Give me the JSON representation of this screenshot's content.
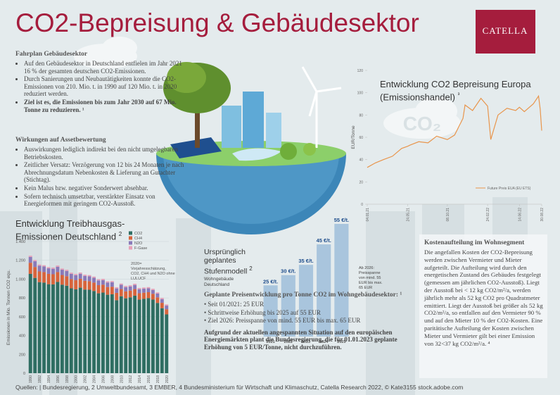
{
  "title": "CO2-Bepreisung & Gebäudesektor",
  "logo": "CATELLA",
  "fahrplan": {
    "heading": "Fahrplan Gebäudesektor",
    "items": [
      "Auf den Gebäudesektor in Deutschland entfielen im Jahr 2021 16 % der gesamten deutschen CO2-Emissionen.",
      "Durch Sanierungen und Neubautätigkeiten konnte die CO2-Emissionen von 210. Mio. t. in 1990 auf 120 Mio. t. in 2020 reduziert werden.",
      "Ziel ist es, die Emissionen bis zum Jahr 2030 auf 67 Mio. Tonne zu reduzieren. ¹"
    ]
  },
  "wirkungen": {
    "heading": "Wirkungen auf Assetbewertung",
    "items": [
      "Auswirkungen lediglich indirekt bei den nicht umgelegbaren Betriebskosten.",
      "Zeitlicher Versatz: Verzögerung von 12 bis 24 Monaten je nach Abrechnungsdatum Nebenkosten & Lieferung an Gutachter (Stichtag).",
      "Kein Malus bzw. negativer Sonderwert absehbar.",
      "Sofern technisch umsetzbar, verstärkter Einsatz von Energieformen mit geringem CO2-Ausstoß."
    ]
  },
  "preis": {
    "heading": "Geplante Preisentwicklung pro Tonne CO2 im Wohngebäudesektor: ¹",
    "items": [
      "Seit 01/2021: 25 EUR",
      "Schrittweise Erhöhung bis 2025 auf 55 EUR",
      "Ziel 2026: Preisspanne von mind. 55 EUR bis max. 65 EUR"
    ],
    "note": "Aufgrund der aktuellen angespannten Situation auf den europäischen Energiemärkten plant die Bundesregierung, die für 01.01.2023 geplante Erhöhung von 5 EUR/Tonne, nicht durchzuführen."
  },
  "kosten": {
    "heading": "Kostenaufteilung im Wohnsegment",
    "text": "Die angefallen Kosten der CO2-Bepreisung werden zwischen Vermieter und Mieter aufgeteilt. Die Aufteilung wird durch den energetischen Zustand des Gebäudes festgelegt  (gemessen am jährlichen CO2-Ausstoß). Liegt der Ausstoß bei < 12 kg CO2/m²/a, werden jährlich mehr als 52 kg CO2 pro Quadratmeter emittiert. Liegt der Ausstoß bei größer als 52 kg CO2/m²/a, so entfallen auf den Vermieter 90 % und auf den Mieter 10 % der CO2-Kosten. Eine paritätische Aufteilung der Kosten zwischen Mieter und Vermieter gilt bei einer Emission von 32<37 kg CO2/m²/a. ⁴"
  },
  "footer": "Quellen: | Bundesregierung, 2 Umweltbundesamt, 3 EMBER, 4 Bundesministerium für Wirtschaft und Klimaschutz, Catella Research 2022, © Kate3155 stock.adobe.com",
  "chart_data": [
    {
      "type": "bar",
      "stacked": true,
      "title": "Entwicklung Treibhausgas-Emissionen Deutschland",
      "title_note": "2",
      "y_label": "Emissionen in Mio. Tonnen CO2 equ.",
      "annotation": "2020= Vorjahresschätzung, CO2, CH4 und N2O ohne LULUCF",
      "categories": [
        1990,
        null,
        1992,
        null,
        1994,
        null,
        1996,
        null,
        1998,
        null,
        2000,
        null,
        2002,
        null,
        2004,
        null,
        2006,
        null,
        2008,
        null,
        2010,
        null,
        2012,
        null,
        2014,
        null,
        2016,
        null,
        2018,
        null,
        2020
      ],
      "series": [
        {
          "name": "CO2",
          "color": "#2f6e62",
          "values": [
            1056,
            1013,
            968,
            963,
            946,
            944,
            970,
            941,
            930,
            902,
            891,
            909,
            889,
            887,
            874,
            849,
            857,
            834,
            839,
            776,
            818,
            796,
            806,
            824,
            782,
            790,
            798,
            783,
            747,
            691,
            625
          ]
        },
        {
          "name": "CH4",
          "color": "#d8643c",
          "values": [
            118,
            116,
            114,
            112,
            110,
            108,
            105,
            103,
            101,
            99,
            97,
            95,
            93,
            91,
            89,
            87,
            84,
            82,
            80,
            78,
            76,
            74,
            72,
            70,
            68,
            66,
            63,
            61,
            59,
            57,
            55
          ]
        },
        {
          "name": "N2O",
          "color": "#8a79b8",
          "values": [
            62,
            61,
            60,
            60,
            59,
            58,
            57,
            56,
            56,
            55,
            54,
            53,
            52,
            52,
            51,
            50,
            49,
            48,
            48,
            47,
            46,
            45,
            44,
            44,
            43,
            42,
            41,
            40,
            40,
            39,
            38
          ]
        },
        {
          "name": "F-Gase",
          "color": "#e7a1b8",
          "values": [
            13,
            13,
            13,
            13,
            13,
            13,
            13,
            13,
            13,
            13,
            13,
            13,
            13,
            13,
            13,
            13,
            13,
            13,
            13,
            13,
            13,
            13,
            13,
            13,
            13,
            13,
            13,
            13,
            13,
            13,
            13
          ]
        }
      ],
      "ylim": [
        0,
        1400
      ],
      "yticks": [
        0,
        200,
        400,
        600,
        800,
        {
          "value": 1000,
          "label": "1.000"
        },
        {
          "value": 1200,
          "label": "1.200"
        },
        {
          "value": 1400,
          "label": "1.400"
        }
      ]
    },
    {
      "type": "line",
      "title": "Entwicklung CO2 Bepreisung Europa (Emissionshandel)",
      "title_note": "³",
      "y_label": "EUR/Tonne",
      "watermark": "CO₂",
      "x": [
        "04.01.21",
        "01.02.21",
        "01.03.21",
        "01.04.21",
        "03.05.21",
        "24.05.21",
        "01.06.21",
        "01.07.21",
        "02.08.21",
        "01.09.21",
        "08.10.21",
        "02.11.21",
        "01.12.21",
        "08.12.21",
        "03.01.22",
        "01.02.22",
        "24.02.22",
        "07.03.22",
        "01.04.22",
        "02.05.22",
        "01.06.22",
        "14.06.22",
        "01.07.22",
        "01.08.22",
        "19.08.22",
        "25.08.22",
        "30.08.22"
      ],
      "series": [
        {
          "name": "Future Preis EUA (EU ETS)",
          "color": "#e8954c",
          "values": [
            33,
            37,
            40,
            43,
            50,
            52,
            53,
            56,
            55,
            61,
            58,
            62,
            77,
            89,
            84,
            95,
            88,
            58,
            80,
            86,
            84,
            87,
            83,
            90,
            97,
            85,
            66
          ]
        }
      ],
      "xlim": [
        "04.01.21",
        "30.08.22"
      ],
      "xticks": [
        "04.01.21",
        "24.05.21",
        "08.10.21",
        "24.02.22",
        "14.06.22",
        "30.08.22"
      ],
      "ylim": [
        0,
        120
      ],
      "yticks": [
        0,
        20,
        40,
        60,
        80,
        100,
        120
      ]
    },
    {
      "type": "bar",
      "title": "Ursprünglich geplantes Stufenmodell",
      "title_note": "2",
      "subtitle": "Wohngebäude Deutschland",
      "annotation": "Ab 2026: Preisspanne von mind. 55 EUR bis max. 65 EUR",
      "categories": [
        "2021",
        "2022",
        "2023",
        "2024",
        "2025"
      ],
      "values": [
        25,
        30,
        35,
        45,
        55
      ],
      "value_labels": [
        "25 €/t.",
        "30 €/t.",
        "35 €/t.",
        "45 €/t.",
        "55 €/t."
      ],
      "color": "#a9c5dd"
    }
  ]
}
